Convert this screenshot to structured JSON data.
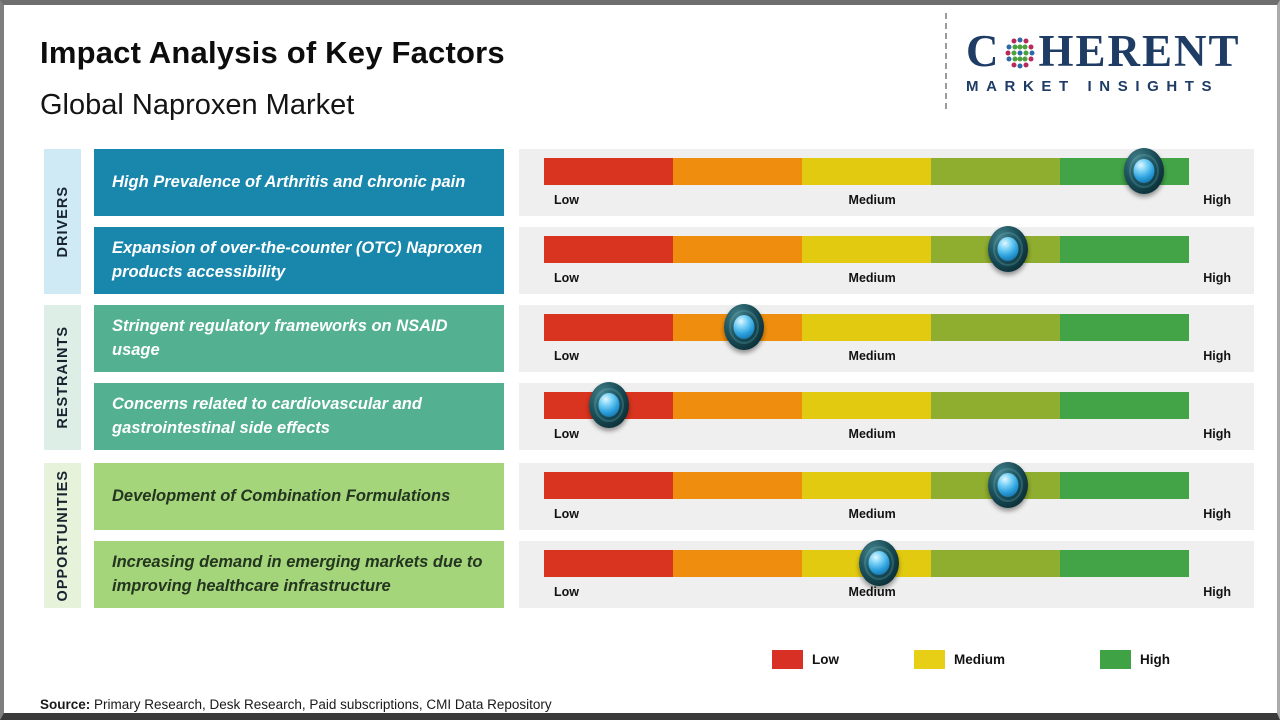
{
  "header": {
    "title": "Impact Analysis of Key Factors",
    "subtitle": "Global Naproxen Market"
  },
  "logo": {
    "name_first_letter": "C",
    "name_rest": "HERENT",
    "tagline": "MARKET INSIGHTS",
    "brand_color": "#1e3c64"
  },
  "categories": [
    {
      "label": "DRIVERS",
      "strip_bg": "#cfe9f5"
    },
    {
      "label": "RESTRAINTS",
      "strip_bg": "#dceee6"
    },
    {
      "label": "OPPORTUNITIES",
      "strip_bg": "#e6f3da"
    }
  ],
  "scale_labels": {
    "low": "Low",
    "medium": "Medium",
    "high": "High"
  },
  "chart_data": {
    "type": "scatter",
    "title": "Impact Analysis of Key Factors",
    "subtitle": "Global Naproxen Market",
    "scale": [
      "Low",
      "Medium",
      "High"
    ],
    "scale_range_percent": [
      0,
      100
    ],
    "segment_colors": [
      "#d9341f",
      "#ef8e0e",
      "#e2ca10",
      "#8fad2e",
      "#42a447"
    ],
    "points": [
      {
        "category": "Drivers",
        "factor": "High Prevalence of Arthritis and chronic pain",
        "impact_percent": 93,
        "impact_level": "High",
        "box_bg": "#1987ac",
        "box_text": "#ffffff"
      },
      {
        "category": "Drivers",
        "factor": "Expansion of over-the-counter (OTC) Naproxen products accessibility",
        "impact_percent": 72,
        "impact_level": "Medium-High",
        "box_bg": "#1987ac",
        "box_text": "#ffffff"
      },
      {
        "category": "Restraints",
        "factor": "Stringent regulatory frameworks on NSAID usage",
        "impact_percent": 31,
        "impact_level": "Low-Medium",
        "box_bg": "#53b191",
        "box_text": "#ffffff"
      },
      {
        "category": "Restraints",
        "factor": "Concerns related to cardiovascular and gastrointestinal side effects",
        "impact_percent": 10,
        "impact_level": "Low",
        "box_bg": "#53b191",
        "box_text": "#ffffff"
      },
      {
        "category": "Opportunities",
        "factor": "Development of Combination Formulations",
        "impact_percent": 72,
        "impact_level": "Medium-High",
        "box_bg": "#a5d57b",
        "box_text": "#243520"
      },
      {
        "category": "Opportunities",
        "factor": "Increasing demand in emerging markets due to improving healthcare infrastructure",
        "impact_percent": 52,
        "impact_level": "Medium",
        "box_bg": "#a5d57b",
        "box_text": "#243520"
      }
    ]
  },
  "legend": {
    "items": [
      {
        "label": "Low",
        "color": "#d93025"
      },
      {
        "label": "Medium",
        "color": "#e6cf15"
      },
      {
        "label": "High",
        "color": "#3fa345"
      }
    ]
  },
  "source": {
    "label": "Source:",
    "text": " Primary Research, Desk Research, Paid subscriptions, CMI Data Repository"
  }
}
